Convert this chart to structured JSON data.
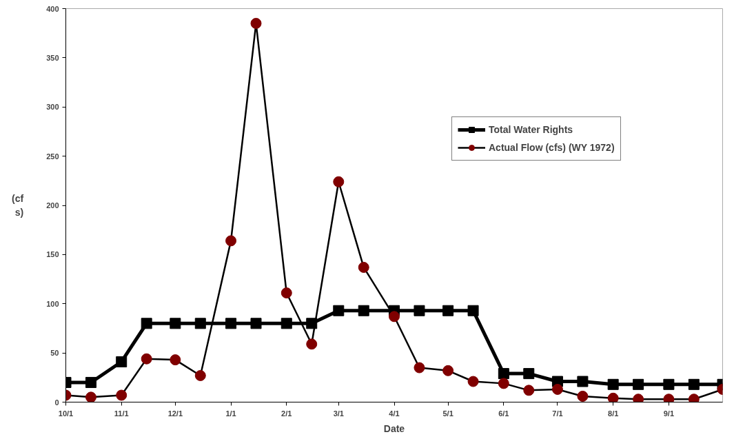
{
  "chart_data": {
    "type": "line",
    "xlabel": "Date",
    "ylabel": "(cf\ns)",
    "x": [
      "1971-10-01",
      "1971-10-15",
      "1971-11-01",
      "1971-11-15",
      "1971-12-01",
      "1971-12-15",
      "1972-01-01",
      "1972-01-15",
      "1972-02-01",
      "1972-02-15",
      "1972-03-01",
      "1972-03-15",
      "1972-04-01",
      "1972-04-15",
      "1972-05-01",
      "1972-05-15",
      "1972-06-01",
      "1972-06-15",
      "1972-07-01",
      "1972-07-15",
      "1972-08-01",
      "1972-08-15",
      "1972-09-01",
      "1972-09-15",
      "1972-10-01"
    ],
    "series": [
      {
        "name": "Total Water Rights",
        "color": "#000000",
        "marker": "square",
        "values": [
          20,
          20,
          41,
          80,
          80,
          80,
          80,
          80,
          80,
          80,
          93,
          93,
          93,
          93,
          93,
          93,
          29,
          29,
          21,
          21,
          18,
          18,
          18,
          18,
          18
        ]
      },
      {
        "name": "Actual Flow (cfs) (WY 1972)",
        "color": "#800000",
        "marker": "circle",
        "values": [
          7,
          5,
          7,
          44,
          43,
          27,
          164,
          385,
          111,
          59,
          224,
          137,
          87,
          35,
          32,
          21,
          19,
          12,
          13,
          6,
          4,
          3,
          3,
          3,
          13
        ]
      }
    ],
    "xlim": [
      "1971-10-01",
      "1972-10-01"
    ],
    "xticks": [
      {
        "value": "1971-10-01",
        "label": "10/1"
      },
      {
        "value": "1971-11-01",
        "label": "11/1"
      },
      {
        "value": "1971-12-01",
        "label": "12/1"
      },
      {
        "value": "1972-01-01",
        "label": "1/1"
      },
      {
        "value": "1972-02-01",
        "label": "2/1"
      },
      {
        "value": "1972-03-01",
        "label": "3/1"
      },
      {
        "value": "1972-04-01",
        "label": "4/1"
      },
      {
        "value": "1972-05-01",
        "label": "5/1"
      },
      {
        "value": "1972-06-01",
        "label": "6/1"
      },
      {
        "value": "1972-07-01",
        "label": "7/1"
      },
      {
        "value": "1972-08-01",
        "label": "8/1"
      },
      {
        "value": "1972-09-01",
        "label": "9/1"
      }
    ],
    "ylim": [
      0,
      400
    ],
    "yticks": [
      0,
      50,
      100,
      150,
      200,
      250,
      300,
      350,
      400
    ],
    "grid": false,
    "legend": "top right"
  }
}
